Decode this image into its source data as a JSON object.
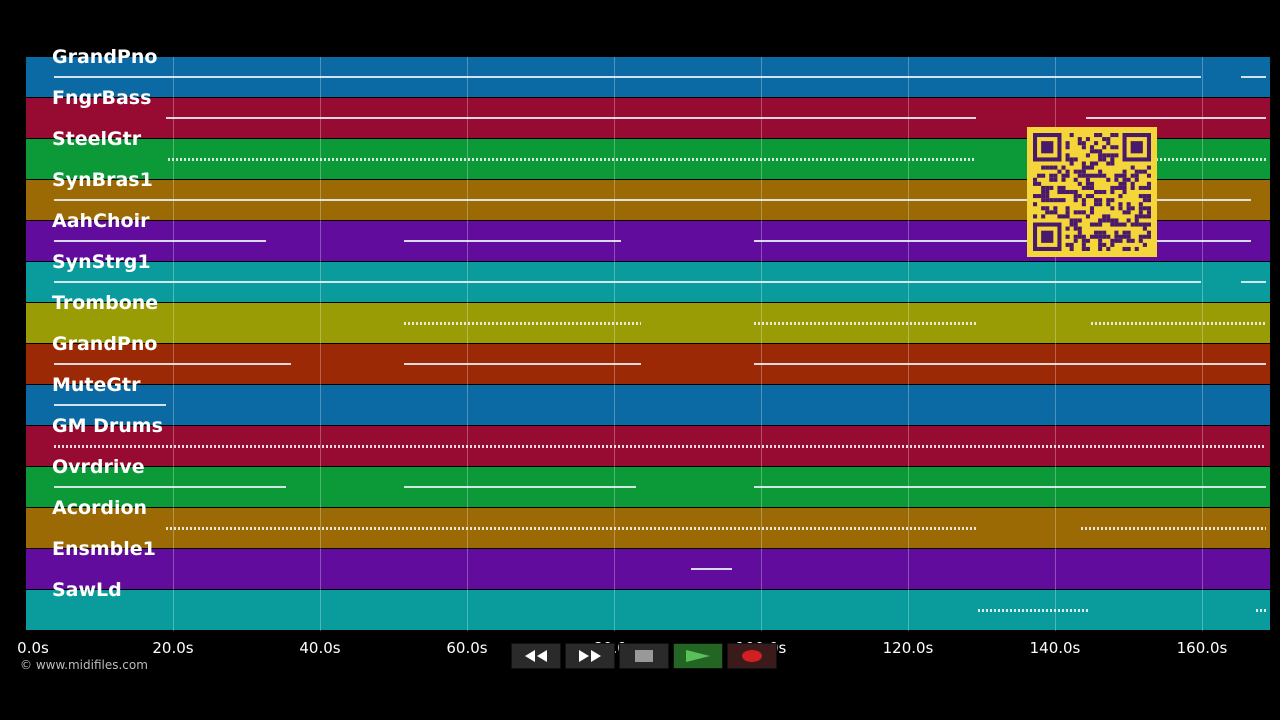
{
  "tracks": [
    {
      "label": "GrandPno",
      "color": "#0b6aa3"
    },
    {
      "label": "FngrBass",
      "color": "#970a32"
    },
    {
      "label": "SteelGtr",
      "color": "#0b9a37"
    },
    {
      "label": "SynBras1",
      "color": "#9b6a05"
    },
    {
      "label": "AahChoir",
      "color": "#620c9e"
    },
    {
      "label": "SynStrg1",
      "color": "#0a9c9c"
    },
    {
      "label": "Trombone",
      "color": "#9a9c05"
    },
    {
      "label": "GrandPno",
      "color": "#9b2906"
    },
    {
      "label": "MuteGtr",
      "color": "#0b6aa3"
    },
    {
      "label": "GM Drums",
      "color": "#970a32"
    },
    {
      "label": "Ovrdrive",
      "color": "#0b9a37"
    },
    {
      "label": "Acordion",
      "color": "#9b6a05"
    },
    {
      "label": "Ensmble1",
      "color": "#620c9e"
    },
    {
      "label": "SawLd",
      "color": "#0a9c9c"
    }
  ],
  "timeline": {
    "ticks": [
      "0.0s",
      "20.0s",
      "40.0s",
      "60.0s",
      "80.0s",
      "100.0s",
      "120.0s",
      "140.0s",
      "160.0s"
    ]
  },
  "credit": "© www.midifiles.com",
  "transport": {
    "buttons": [
      "rewind-icon",
      "fast-forward-icon",
      "stop-icon",
      "play-icon",
      "record-icon"
    ],
    "colors": {
      "play": "#3a8a3a",
      "record": "#d02020"
    }
  },
  "qr": {
    "color": "#f5d63a",
    "ink": "#4a1a6a"
  }
}
